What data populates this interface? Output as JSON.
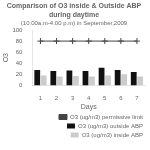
{
  "chart_data": {
    "type": "bar",
    "title": "Comparison of O3 inside & Outside ABP during daytime",
    "subtitle": "(10.00a.m-4.00 p.m) in September,2009",
    "xlabel": "Days",
    "ylabel": "O3",
    "categories": [
      "1",
      "2",
      "3",
      "4",
      "5",
      "6",
      "7"
    ],
    "series": [
      {
        "name": "O3 (ug/m3) outside ABP",
        "color": "#111111",
        "values": [
          28,
          26,
          27,
          26,
          32,
          28,
          24
        ]
      },
      {
        "name": "O3 (ug/m3) inside ABP",
        "color": "#cccccc",
        "values": [
          18,
          16,
          17,
          16,
          18,
          20,
          16
        ]
      },
      {
        "name": "O3 (ug/m3) permissive limit",
        "type": "line",
        "color": "#444444",
        "marker": "+",
        "line_style": "solid",
        "values": [
          80,
          80,
          80,
          80,
          80,
          80,
          80
        ]
      }
    ],
    "ylim": [
      0,
      100
    ],
    "yticks": [
      0,
      20,
      40,
      60,
      80,
      100
    ],
    "grid": false,
    "legend": "lower right"
  }
}
